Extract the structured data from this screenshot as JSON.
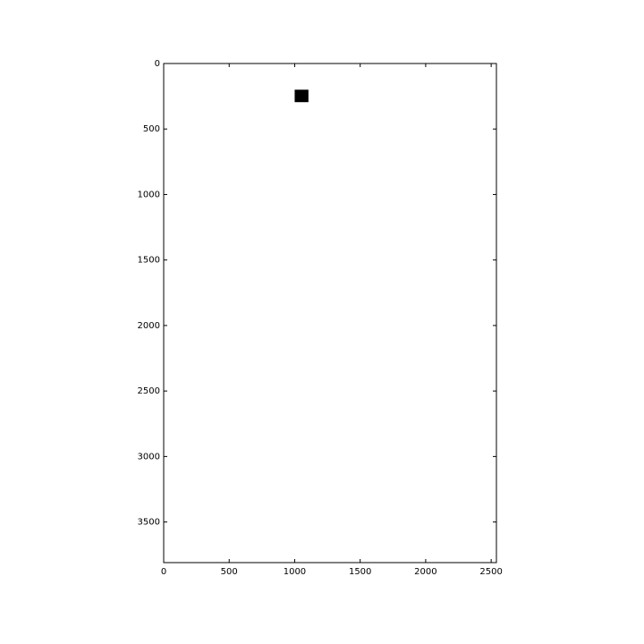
{
  "chart_data": {
    "type": "heatmap",
    "title": "",
    "xlabel": "",
    "ylabel": "",
    "xlim": [
      0,
      2540
    ],
    "ylim": [
      3810,
      0
    ],
    "x_ticks": [
      0,
      500,
      1000,
      1500,
      2000,
      2500
    ],
    "y_ticks": [
      0,
      500,
      1000,
      1500,
      2000,
      2500,
      3000,
      3500
    ],
    "x_tick_labels": [
      "0",
      "500",
      "1000",
      "1500",
      "2000",
      "2500"
    ],
    "y_tick_labels": [
      "0",
      "500",
      "1000",
      "1500",
      "2000",
      "2500",
      "3000",
      "3500"
    ],
    "grid": false,
    "background_color": "#ffffff",
    "blobs": [
      {
        "x0": 1000,
        "x1": 1105,
        "y0": 200,
        "y1": 295,
        "color": "#000000"
      }
    ]
  }
}
